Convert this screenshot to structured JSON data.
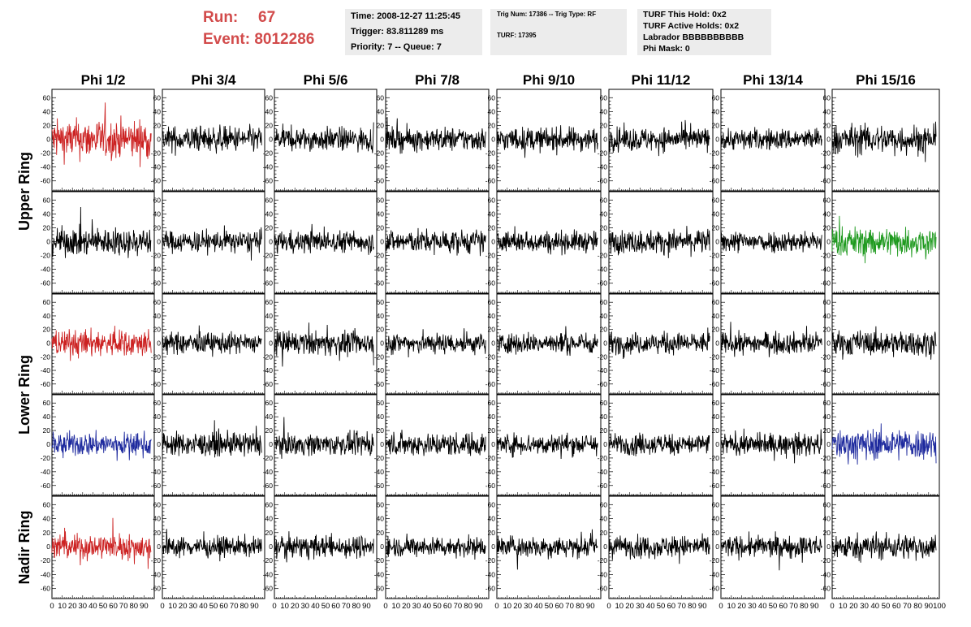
{
  "header": {
    "run_label": "Run:",
    "run_value": "67",
    "event_label": "Event:",
    "event_value": "8012286"
  },
  "info_box_1": {
    "time": "Time: 2008-12-27 11:25:45",
    "trigger": "Trigger: 83.811289 ms",
    "priority": "Priority: 7 -- Queue: 7"
  },
  "info_box_2": {
    "trig_line": "Trig Num: 17386 -- Trig Type: RF",
    "turf_line": "TURF: 17395"
  },
  "info_box_3": {
    "hold": "TURF This Hold: 0x2",
    "active_holds": "TURF Active Holds: 0x2",
    "labrador": "Labrador BBBBBBBBBB",
    "phi_mask": "Phi Mask: 0"
  },
  "chart_data": {
    "type": "line",
    "columns": [
      "Phi 1/2",
      "Phi 3/4",
      "Phi 5/6",
      "Phi 7/8",
      "Phi 9/10",
      "Phi 11/12",
      "Phi 13/14",
      "Phi 15/16"
    ],
    "row_groups": [
      {
        "label": "Upper Ring",
        "rows": [
          0,
          1
        ]
      },
      {
        "label": "Lower Ring",
        "rows": [
          2,
          3
        ]
      },
      {
        "label": "Nadir Ring",
        "rows": [
          4
        ]
      }
    ],
    "x_range": [
      0,
      100
    ],
    "y_range": [
      -65,
      65
    ],
    "x_ticks": [
      "0",
      "10",
      "20",
      "30",
      "40",
      "50",
      "60",
      "70",
      "80",
      "90",
      "100"
    ],
    "y_ticks": [
      "60",
      "40",
      "20",
      "0",
      "-20",
      "-40",
      "-60"
    ],
    "samples_per_trace": 260,
    "trace_x_end": 97,
    "colors": {
      "default": "#000000",
      "red": "#cc2222",
      "green": "#1f9a1f",
      "blue": "#1e2a9e"
    },
    "panels": [
      [
        "red",
        "default",
        "default",
        "default",
        "default",
        "default",
        "default",
        "default"
      ],
      [
        "default",
        "default",
        "default",
        "default",
        "default",
        "default",
        "default",
        "green"
      ],
      [
        "red",
        "default",
        "default",
        "default",
        "default",
        "default",
        "default",
        "default"
      ],
      [
        "blue",
        "default",
        "default",
        "default",
        "default",
        "default",
        "default",
        "blue"
      ],
      [
        "red",
        "default",
        "default",
        "default",
        "default",
        "default",
        "default",
        "default"
      ]
    ],
    "amplitudes": [
      [
        20,
        13,
        12,
        12,
        12,
        12,
        11,
        15
      ],
      [
        14,
        11,
        11,
        12,
        11,
        12,
        11,
        15
      ],
      [
        14,
        11,
        12,
        11,
        11,
        11,
        11,
        13
      ],
      [
        12,
        12,
        11,
        12,
        11,
        11,
        11,
        16
      ],
      [
        13,
        10,
        11,
        10,
        11,
        11,
        11,
        13
      ]
    ]
  }
}
